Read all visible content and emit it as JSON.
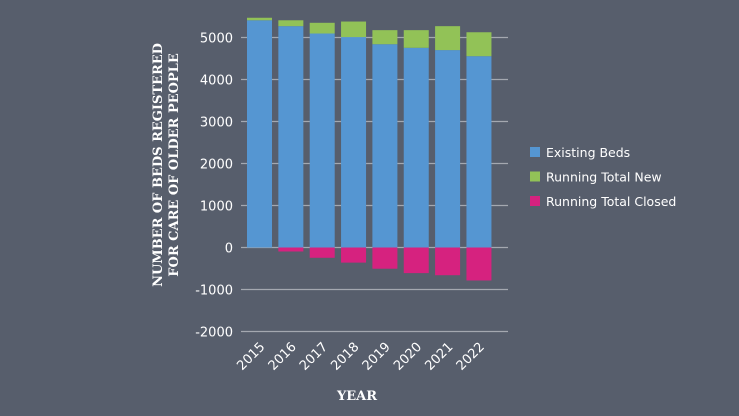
{
  "chart_data": {
    "type": "bar",
    "stacked": true,
    "categories": [
      "2015",
      "2016",
      "2017",
      "2018",
      "2019",
      "2020",
      "2021",
      "2022"
    ],
    "series": [
      {
        "name": "Existing Beds",
        "color": "#5596d2",
        "values": [
          5410,
          5270,
          5095,
          5010,
          4840,
          4755,
          4700,
          4555
        ]
      },
      {
        "name": "Running Total New",
        "color": "#92c257",
        "values": [
          60,
          140,
          255,
          370,
          335,
          420,
          570,
          570
        ]
      },
      {
        "name": "Running Total Closed",
        "color": "#d6227f",
        "values": [
          0,
          -95,
          -245,
          -360,
          -505,
          -610,
          -660,
          -785
        ]
      }
    ],
    "xlabel": "YEAR",
    "ylabel": [
      "NUMBER OF BEDS REGISTERED",
      "FOR CARE OF OLDER PEOPLE"
    ],
    "ylim": [
      -2000,
      5500
    ],
    "yticks": [
      -2000,
      -1000,
      0,
      1000,
      2000,
      3000,
      4000,
      5000
    ],
    "ytick_labels": [
      "-2000",
      "-1000",
      "0",
      "1000",
      "2000",
      "3000",
      "4000",
      "5000"
    ],
    "grid": true,
    "legend": "right"
  }
}
